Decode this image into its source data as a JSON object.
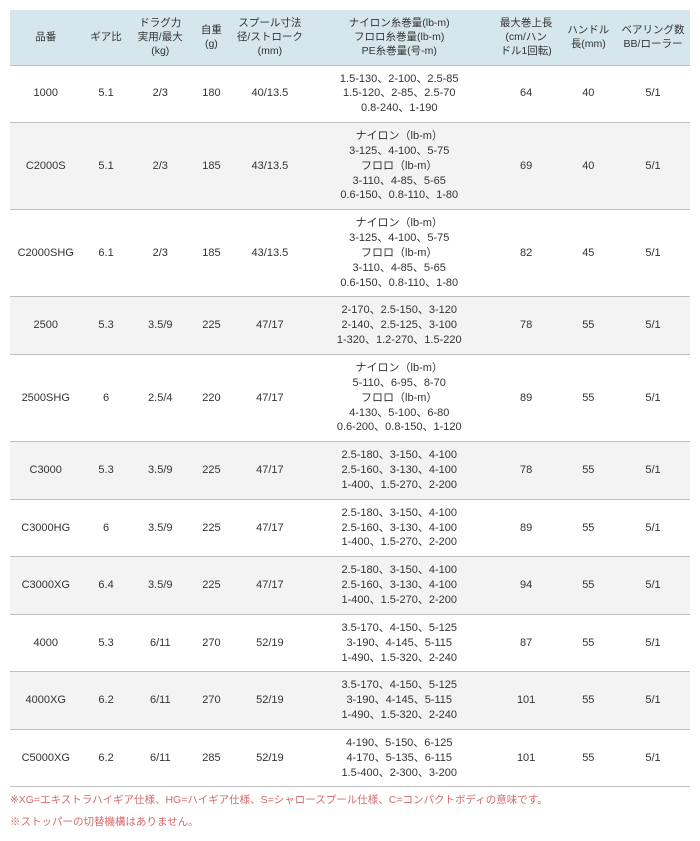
{
  "columns": [
    "品番",
    "ギア比",
    "ドラグ力\n実用/最大\n(kg)",
    "自重\n(g)",
    "スプール寸法\n径/ストローク\n(mm)",
    "ナイロン糸巻量(lb-m)\nフロロ糸巻量(lb-m)\nPE糸巻量(号-m)",
    "最大巻上長\n(cm/ハン\nドル1回転)",
    "ハンドル\n長(mm)",
    "ベアリング数\nBB/ローラー"
  ],
  "rows": [
    [
      "1000",
      "5.1",
      "2/3",
      "180",
      "40/13.5",
      "1.5-130、2-100、2.5-85\n1.5-120、2-85、2.5-70\n0.8-240、1-190",
      "64",
      "40",
      "5/1"
    ],
    [
      "C2000S",
      "5.1",
      "2/3",
      "185",
      "43/13.5",
      "ナイロン（lb-m）\n3-125、4-100、5-75\nフロロ（lb-m）\n3-110、4-85、5-65\n0.6-150、0.8-110、1-80",
      "69",
      "40",
      "5/1"
    ],
    [
      "C2000SHG",
      "6.1",
      "2/3",
      "185",
      "43/13.5",
      "ナイロン（lb-m）\n3-125、4-100、5-75\nフロロ（lb-m）\n3-110、4-85、5-65\n0.6-150、0.8-110、1-80",
      "82",
      "45",
      "5/1"
    ],
    [
      "2500",
      "5.3",
      "3.5/9",
      "225",
      "47/17",
      "2-170、2.5-150、3-120\n2-140、2.5-125、3-100\n1-320、1.2-270、1.5-220",
      "78",
      "55",
      "5/1"
    ],
    [
      "2500SHG",
      "6",
      "2.5/4",
      "220",
      "47/17",
      "ナイロン（lb-m）\n5-110、6-95、8-70\nフロロ（lb-m）\n4-130、5-100、6-80\n0.6-200、0.8-150、1-120",
      "89",
      "55",
      "5/1"
    ],
    [
      "C3000",
      "5.3",
      "3.5/9",
      "225",
      "47/17",
      "2.5-180、3-150、4-100\n2.5-160、3-130、4-100\n1-400、1.5-270、2-200",
      "78",
      "55",
      "5/1"
    ],
    [
      "C3000HG",
      "6",
      "3.5/9",
      "225",
      "47/17",
      "2.5-180、3-150、4-100\n2.5-160、3-130、4-100\n1-400、1.5-270、2-200",
      "89",
      "55",
      "5/1"
    ],
    [
      "C3000XG",
      "6.4",
      "3.5/9",
      "225",
      "47/17",
      "2.5-180、3-150、4-100\n2.5-160、3-130、4-100\n1-400、1.5-270、2-200",
      "94",
      "55",
      "5/1"
    ],
    [
      "4000",
      "5.3",
      "6/11",
      "270",
      "52/19",
      "3.5-170、4-150、5-125\n3-190、4-145、5-115\n1-490、1.5-320、2-240",
      "87",
      "55",
      "5/1"
    ],
    [
      "4000XG",
      "6.2",
      "6/11",
      "270",
      "52/19",
      "3.5-170、4-150、5-125\n3-190、4-145、5-115\n1-490、1.5-320、2-240",
      "101",
      "55",
      "5/1"
    ],
    [
      "C5000XG",
      "6.2",
      "6/11",
      "285",
      "52/19",
      "4-190、5-150、6-125\n4-170、5-135、6-115\n1.5-400、2-300、3-200",
      "101",
      "55",
      "5/1"
    ]
  ],
  "footnotes": [
    "※XG=エキストラハイギア仕様、HG=ハイギア仕様、S=シャロースプール仕様、C=コンパクトボディの意味です。",
    "※ストッパーの切替機構はありません。"
  ],
  "colors": {
    "header_bg": "#d5e6ed",
    "row_odd": "#ffffff",
    "row_even": "#f3f3f3",
    "border": "#bfbfbf",
    "footnote": "#d46a6a"
  }
}
